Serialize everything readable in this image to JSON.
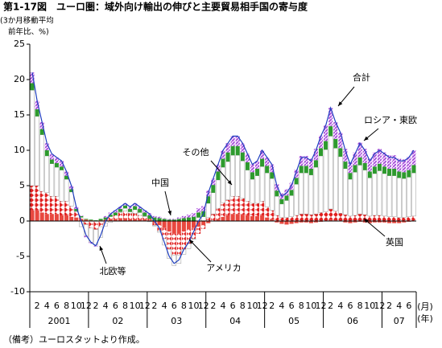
{
  "chart_data": {
    "type": "stacked-bar",
    "title": "第1-17図　ユーロ圏：域外向け輸出の伸びと主要貿易相手国の寄与度",
    "y_label": [
      "(3か月移動平均",
      "前年比、%)"
    ],
    "x_unit": [
      "(月)",
      "(年)"
    ],
    "note": "（備考）ユーロスタットより作成。",
    "ylim": [
      -10,
      25
    ],
    "yticks": [
      25,
      20,
      15,
      10,
      5,
      0,
      -5,
      -10
    ],
    "categories": [
      null,
      "2",
      null,
      "4",
      null,
      "6",
      null,
      "8",
      null,
      "10",
      null,
      "12",
      null,
      "2",
      null,
      "4",
      null,
      "6",
      null,
      "8",
      null,
      "10",
      null,
      "12",
      null,
      "2",
      null,
      "4",
      null,
      "6",
      null,
      "8",
      null,
      "10",
      null,
      "12",
      null,
      "2",
      null,
      "4",
      null,
      "6",
      null,
      "8",
      null,
      "10",
      null,
      "12",
      null,
      "2",
      null,
      "4",
      null,
      "6",
      null,
      "8",
      null,
      "10",
      null,
      "12",
      null,
      "2",
      null,
      "4",
      null,
      "6",
      null,
      "8",
      null,
      "10",
      null,
      "12",
      null,
      "2",
      null,
      "4",
      null,
      "6",
      null
    ],
    "year_labels": [
      "2001",
      "02",
      "03",
      "04",
      "05",
      "06",
      "07"
    ],
    "series": [
      {
        "name": "英国",
        "color": "#e8483f",
        "values": [
          1.5,
          1.5,
          1.2,
          1,
          1,
          1,
          0.8,
          0.8,
          0.6,
          0.5,
          0.3,
          0.2,
          0.1,
          0,
          0.1,
          0.2,
          0.3,
          0.3,
          0.4,
          0.4,
          0.3,
          0.3,
          0.2,
          0.2,
          0.1,
          -0.3,
          -0.6,
          -1,
          -1.5,
          -1.8,
          -1.8,
          -1.5,
          -1.2,
          -1,
          -0.8,
          -0.6,
          -0.3,
          0,
          0.3,
          0.6,
          0.8,
          1,
          1,
          0.9,
          0.8,
          0.7,
          0.7,
          0.8,
          0.5,
          0.3,
          -0.2,
          -0.4,
          -0.5,
          -0.4,
          -0.3,
          -0.2,
          -0.2,
          -0.3,
          -0.2,
          -0.1,
          0,
          0.2,
          0.1,
          0,
          -0.2,
          -0.3,
          -0.2,
          -0.1,
          -0.2,
          -0.3,
          -0.2,
          -0.2,
          -0.2,
          -0.3,
          -0.3,
          -0.3,
          -0.2,
          -0.1,
          0
        ]
      },
      {
        "name": "アメリカ",
        "color": "#e02020",
        "values": [
          3.5,
          3.5,
          3,
          3,
          2.5,
          2.5,
          2,
          2,
          1.5,
          0.8,
          0.2,
          -0.5,
          -1,
          -1.2,
          -0.8,
          -0.3,
          0.3,
          0.5,
          0.8,
          1,
          0.8,
          0.8,
          0.6,
          0.4,
          0.2,
          -0.3,
          -0.8,
          -1.5,
          -2.5,
          -3,
          -3,
          -2.5,
          -2,
          -1.5,
          -1,
          -0.5,
          0.5,
          1,
          1.5,
          2,
          2.2,
          2.5,
          2.5,
          2.3,
          2,
          1.8,
          1.8,
          2,
          1.5,
          1.2,
          0.8,
          0.5,
          0.5,
          0.6,
          0.8,
          1,
          1,
          0.9,
          1,
          1.2,
          1.3,
          1.5,
          1.3,
          1.1,
          0.9,
          0.7,
          0.8,
          1,
          0.9,
          0.7,
          0.8,
          0.8,
          0.7,
          0.6,
          0.6,
          0.5,
          0.5,
          0.6,
          0.7
        ]
      },
      {
        "name": "その他",
        "color": "#ffffff",
        "values": [
          13.5,
          9.8,
          8,
          5.2,
          4.6,
          4.1,
          4.4,
          3.1,
          2,
          0.1,
          -0.8,
          -1.6,
          -2,
          -2.2,
          -1.5,
          -0.4,
          -0.2,
          0,
          0.1,
          0.4,
          0.2,
          0.5,
          0.4,
          0.1,
          -0.1,
          -0.1,
          -0.2,
          -0.9,
          -1.3,
          -1.5,
          -1.2,
          -0.7,
          -0.7,
          -0.1,
          0.5,
          0.6,
          2,
          3,
          4,
          5,
          5.4,
          5.8,
          5.8,
          5.3,
          4.4,
          3.4,
          3.9,
          4.9,
          4.8,
          4.5,
          2.7,
          1.9,
          2.4,
          3,
          4.4,
          5.8,
          5.8,
          5.6,
          6.6,
          8,
          8.8,
          10.3,
          8.9,
          8,
          6.5,
          5.2,
          6.1,
          6.9,
          6.3,
          5.4,
          5.9,
          6.3,
          6,
          5.8,
          5.8,
          5.6,
          5.5,
          5.6,
          6.1
        ]
      },
      {
        "name": "中国",
        "color": "#2e9a2e",
        "values": [
          1,
          1,
          0.8,
          0.8,
          0.6,
          0.6,
          0.5,
          0.5,
          0.4,
          0.3,
          0.2,
          0.1,
          0.1,
          0.1,
          0.2,
          0.3,
          0.3,
          0.4,
          0.4,
          0.4,
          0.4,
          0.5,
          0.5,
          0.5,
          0.5,
          0.5,
          0.4,
          0.3,
          0.2,
          0.2,
          0.3,
          0.4,
          0.5,
          0.6,
          0.7,
          0.8,
          1,
          1.1,
          1.2,
          1.2,
          1.3,
          1.3,
          1.3,
          1.2,
          1.1,
          1,
          1,
          1.1,
          1,
          0.9,
          0.8,
          0.7,
          0.7,
          0.8,
          0.9,
          1,
          1,
          0.9,
          1,
          1.1,
          1.2,
          1.4,
          1.3,
          1.2,
          1,
          0.9,
          1,
          1.1,
          1,
          0.9,
          1,
          1,
          1,
          1,
          1,
          0.9,
          0.9,
          1,
          1.1
        ]
      },
      {
        "name": "ロシア・東欧",
        "color": "#9a3fd0",
        "values": [
          1.5,
          1.2,
          1,
          1,
          0.8,
          0.8,
          0.8,
          0.6,
          0.5,
          0.3,
          0.1,
          -0.2,
          -0.2,
          -0.2,
          0,
          0.2,
          0.3,
          0.3,
          0.3,
          0.3,
          0.3,
          0.4,
          0.3,
          0.3,
          0.3,
          0.2,
          0.2,
          0.1,
          0.1,
          0.1,
          0.2,
          0.3,
          0.4,
          0.5,
          0.6,
          0.7,
          0.8,
          0.9,
          1,
          1.2,
          1.3,
          1.4,
          1.4,
          1.3,
          1.2,
          1.1,
          1.1,
          1.2,
          1.2,
          1.1,
          0.9,
          0.8,
          0.9,
          1,
          1.2,
          1.4,
          1.4,
          1.4,
          1.6,
          1.8,
          2.2,
          2.6,
          2.4,
          2.2,
          1.8,
          1.5,
          1.8,
          2.1,
          2,
          1.8,
          2,
          2.1,
          2,
          1.9,
          1.9,
          1.8,
          1.8,
          1.9,
          2.1
        ]
      }
    ],
    "total": {
      "name": "合計",
      "color": "#1f3fbf",
      "values": [
        21,
        17,
        14,
        11,
        9.5,
        9,
        8.5,
        7,
        5,
        2,
        0,
        -2,
        -3,
        -3.5,
        -2,
        0,
        1,
        1.5,
        2,
        2.5,
        2,
        2.5,
        2,
        1.5,
        1,
        0,
        -1,
        -3,
        -5,
        -6,
        -5.5,
        -4,
        -3,
        -1.5,
        0,
        1,
        4,
        6,
        8,
        10,
        11,
        12,
        12,
        11,
        9.5,
        8,
        8.5,
        10,
        9,
        8,
        5,
        3.5,
        4,
        5,
        7,
        9,
        9,
        8.5,
        10,
        12,
        13.5,
        16,
        14,
        12.5,
        10,
        8,
        9.5,
        11,
        10,
        8.5,
        9.5,
        10,
        9.5,
        9,
        9,
        8.5,
        8.5,
        9,
        10
      ]
    },
    "annotations": [
      "北欧等"
    ]
  }
}
